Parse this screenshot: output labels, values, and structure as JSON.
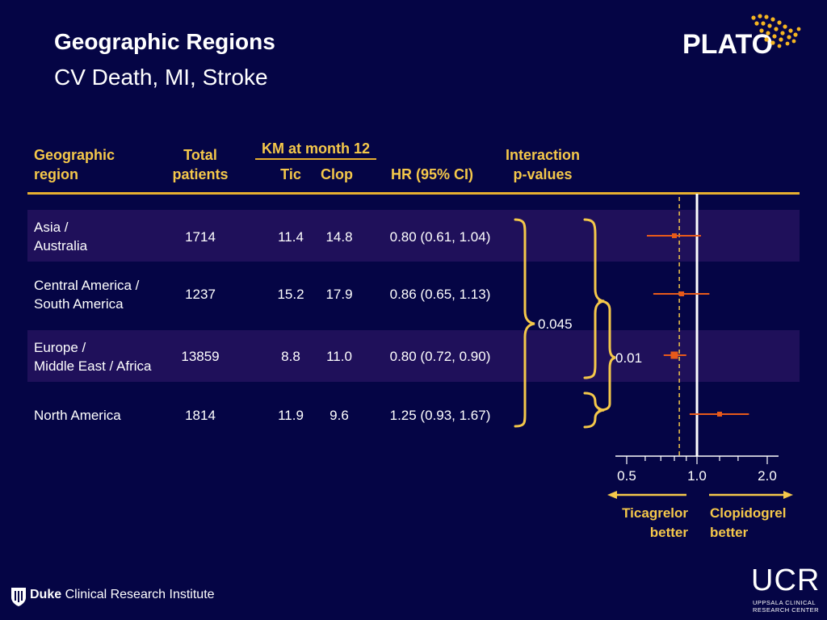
{
  "slide": {
    "title": "Geographic Regions",
    "subtitle": "CV Death, MI, Stroke"
  },
  "headers": {
    "region": [
      "Geographic",
      "region"
    ],
    "total": [
      "Total",
      "patients"
    ],
    "km_group": "KM at month 12",
    "tic": "Tic",
    "clop": "Clop",
    "hr": "HR (95% CI)",
    "interaction": [
      "Interaction",
      "p-values"
    ]
  },
  "rows": [
    {
      "region": [
        "Asia /",
        "Australia"
      ],
      "total": "1714",
      "tic": "11.4",
      "clop": "14.8",
      "hr": "0.80 (0.61, 1.04)"
    },
    {
      "region": [
        "Central America /",
        "South America"
      ],
      "total": "1237",
      "tic": "15.2",
      "clop": "17.9",
      "hr": "0.86 (0.65, 1.13)"
    },
    {
      "region": [
        "Europe /",
        "Middle East / Africa"
      ],
      "total": "13859",
      "tic": "8.8",
      "clop": "11.0",
      "hr": "0.80 (0.72, 0.90)"
    },
    {
      "region": [
        "North America"
      ],
      "total": "1814",
      "tic": "11.9",
      "clop": "9.6",
      "hr": "1.25 (0.93, 1.67)"
    }
  ],
  "interaction_pvalues": {
    "all_regions": "0.045",
    "north_america_vs_others": "0.01"
  },
  "chart_data": {
    "type": "scatter",
    "subtype": "forest-plot",
    "x_scale": "log",
    "xlim": [
      0.5,
      2.0
    ],
    "x_ticks": [
      "0.5",
      "1.0",
      "2.0"
    ],
    "reference_line": 1.0,
    "overall_line": 0.84,
    "points": [
      {
        "label": "Asia / Australia",
        "hr": 0.8,
        "lower": 0.61,
        "upper": 1.04
      },
      {
        "label": "Central America / South America",
        "hr": 0.86,
        "lower": 0.65,
        "upper": 1.13
      },
      {
        "label": "Europe / Middle East / Africa",
        "hr": 0.8,
        "lower": 0.72,
        "upper": 0.9
      },
      {
        "label": "North America",
        "hr": 1.25,
        "lower": 0.93,
        "upper": 1.67
      }
    ],
    "left_arrow_label": [
      "Ticagrelor",
      "better"
    ],
    "right_arrow_label": [
      "Clopidogrel",
      "better"
    ]
  },
  "colors": {
    "background": "#050545",
    "accent": "#f5c84a",
    "marker": "#e85a1a",
    "band": "#1f105a"
  },
  "logos": {
    "plato": "PLATO",
    "duke_bold": "Duke",
    "duke_rest": "Clinical Research Institute",
    "ucr": "UCR",
    "ucr_sub1": "UPPSALA CLINICAL",
    "ucr_sub2": "RESEARCH CENTER"
  }
}
